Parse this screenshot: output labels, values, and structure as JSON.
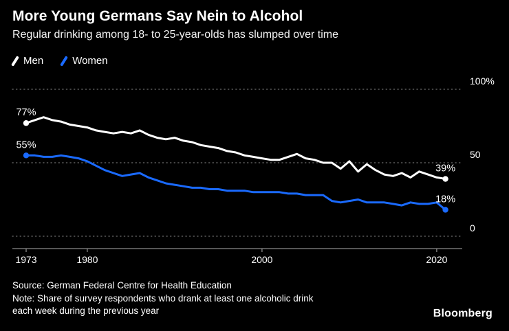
{
  "chart_data": {
    "type": "line",
    "title": "More Young Germans Say Nein to Alcohol",
    "subtitle": "Regular drinking among 18- to 25-year-olds has slumped over time",
    "xlim": [
      1973,
      2022
    ],
    "ylim": [
      0,
      100
    ],
    "grid": "dotted-horizontal",
    "legend_position": "top-left",
    "x_ticks": [
      {
        "year": 1973,
        "label": "1973"
      },
      {
        "year": 1980,
        "label": "1980"
      },
      {
        "year": 2000,
        "label": "2000"
      },
      {
        "year": 2020,
        "label": "2020"
      }
    ],
    "y_gridlines": [
      {
        "value": 100,
        "label": "100%"
      },
      {
        "value": 50,
        "label": "50"
      },
      {
        "value": 0,
        "label": "0"
      }
    ],
    "series": [
      {
        "name": "Men",
        "color": "#ffffff",
        "points": [
          [
            1973,
            77
          ],
          [
            1974,
            79
          ],
          [
            1975,
            81
          ],
          [
            1976,
            79
          ],
          [
            1977,
            78
          ],
          [
            1978,
            76
          ],
          [
            1979,
            75
          ],
          [
            1980,
            74
          ],
          [
            1981,
            72
          ],
          [
            1982,
            71
          ],
          [
            1983,
            70
          ],
          [
            1984,
            71
          ],
          [
            1985,
            70
          ],
          [
            1986,
            72
          ],
          [
            1987,
            69
          ],
          [
            1988,
            67
          ],
          [
            1989,
            66
          ],
          [
            1990,
            67
          ],
          [
            1991,
            65
          ],
          [
            1992,
            64
          ],
          [
            1993,
            62
          ],
          [
            1994,
            61
          ],
          [
            1995,
            60
          ],
          [
            1996,
            58
          ],
          [
            1997,
            57
          ],
          [
            1998,
            55
          ],
          [
            1999,
            54
          ],
          [
            2000,
            53
          ],
          [
            2001,
            52
          ],
          [
            2002,
            52
          ],
          [
            2003,
            54
          ],
          [
            2004,
            56
          ],
          [
            2005,
            53
          ],
          [
            2006,
            52
          ],
          [
            2007,
            50
          ],
          [
            2008,
            50
          ],
          [
            2009,
            46
          ],
          [
            2010,
            51
          ],
          [
            2011,
            44
          ],
          [
            2012,
            49
          ],
          [
            2013,
            45
          ],
          [
            2014,
            42
          ],
          [
            2015,
            41
          ],
          [
            2016,
            43
          ],
          [
            2017,
            40
          ],
          [
            2018,
            44
          ],
          [
            2019,
            42
          ],
          [
            2020,
            40
          ],
          [
            2021,
            39
          ]
        ]
      },
      {
        "name": "Women",
        "color": "#1a6aff",
        "points": [
          [
            1973,
            55
          ],
          [
            1974,
            55
          ],
          [
            1975,
            54
          ],
          [
            1976,
            54
          ],
          [
            1977,
            55
          ],
          [
            1978,
            54
          ],
          [
            1979,
            53
          ],
          [
            1980,
            51
          ],
          [
            1981,
            48
          ],
          [
            1982,
            45
          ],
          [
            1983,
            43
          ],
          [
            1984,
            41
          ],
          [
            1985,
            42
          ],
          [
            1986,
            43
          ],
          [
            1987,
            40
          ],
          [
            1988,
            38
          ],
          [
            1989,
            36
          ],
          [
            1990,
            35
          ],
          [
            1991,
            34
          ],
          [
            1992,
            33
          ],
          [
            1993,
            33
          ],
          [
            1994,
            32
          ],
          [
            1995,
            32
          ],
          [
            1996,
            31
          ],
          [
            1997,
            31
          ],
          [
            1998,
            31
          ],
          [
            1999,
            30
          ],
          [
            2000,
            30
          ],
          [
            2001,
            30
          ],
          [
            2002,
            30
          ],
          [
            2003,
            29
          ],
          [
            2004,
            29
          ],
          [
            2005,
            28
          ],
          [
            2006,
            28
          ],
          [
            2007,
            28
          ],
          [
            2008,
            24
          ],
          [
            2009,
            23
          ],
          [
            2010,
            24
          ],
          [
            2011,
            25
          ],
          [
            2012,
            23
          ],
          [
            2013,
            23
          ],
          [
            2014,
            23
          ],
          [
            2015,
            22
          ],
          [
            2016,
            21
          ],
          [
            2017,
            23
          ],
          [
            2018,
            22
          ],
          [
            2019,
            22
          ],
          [
            2020,
            23
          ],
          [
            2021,
            18
          ]
        ]
      }
    ],
    "annotations": [
      {
        "series": "Men",
        "year": 1973,
        "value": 77,
        "label": "77%"
      },
      {
        "series": "Women",
        "year": 1973,
        "value": 55,
        "label": "55%"
      },
      {
        "series": "Men",
        "year": 2021,
        "value": 39,
        "label": "39%"
      },
      {
        "series": "Women",
        "year": 2021,
        "value": 18,
        "label": "18%"
      }
    ]
  },
  "footer": {
    "lines": [
      "Source: German Federal Centre for Health Education",
      "Note: Share of survey respondents who drank at least one alcoholic drink",
      "each week during the previous year"
    ],
    "logo": "Bloomberg"
  }
}
